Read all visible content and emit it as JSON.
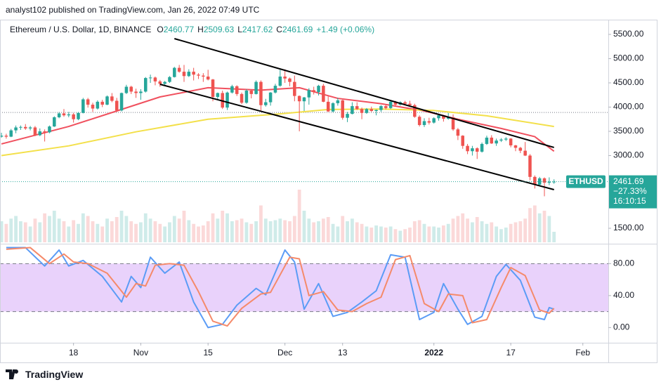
{
  "header": {
    "text": "analyst102 published on TradingView.com, Jan 26, 2022 07:49 UTC"
  },
  "footer": {
    "brand": "TradingView"
  },
  "chart_data": {
    "type": "candlestick",
    "title": "Ethereum / U.S. Dollar, 1D, BINANCE",
    "ohlc": [
      {
        "key": "O",
        "value": "2460.77"
      },
      {
        "key": "H",
        "value": "2509.63"
      },
      {
        "key": "L",
        "value": "2417.62"
      },
      {
        "key": "C",
        "value": "2461.69"
      }
    ],
    "change": "+1.49 (+0.06%)",
    "symbol": "ETHUSD",
    "last_price": {
      "value": 2461.69,
      "label": "2461.69"
    },
    "change_pct": "−27.33%",
    "countdown": "16:10:15",
    "ref_line": 3890,
    "up_color": "#26a69a",
    "down_color": "#ef5350",
    "grid": false,
    "ylim": [
      1210,
      5804
    ],
    "yticks": [
      {
        "value": 5500,
        "label": "5500.00"
      },
      {
        "value": 5000,
        "label": "5000.00"
      },
      {
        "value": 4500,
        "label": "4500.00"
      },
      {
        "value": 4000,
        "label": "4000.00"
      },
      {
        "value": 3500,
        "label": "3500.00"
      },
      {
        "value": 3000,
        "label": "3000.00"
      },
      {
        "value": 1500,
        "label": "1500.00"
      }
    ],
    "xlim": [
      -0.3,
      126.3
    ],
    "xticks": [
      {
        "value": 15,
        "label": "18"
      },
      {
        "value": 29,
        "label": "Nov"
      },
      {
        "value": 43,
        "label": "15"
      },
      {
        "value": 59,
        "label": "Dec"
      },
      {
        "value": 71,
        "label": "13"
      },
      {
        "value": 90,
        "label": "2022"
      },
      {
        "value": 106,
        "label": "17"
      },
      {
        "value": 121,
        "label": "Feb"
      }
    ],
    "candles": [
      [
        3390,
        3470,
        3370,
        3410
      ],
      [
        3410,
        3450,
        3350,
        3390
      ],
      [
        3390,
        3550,
        3380,
        3520
      ],
      [
        3520,
        3620,
        3460,
        3580
      ],
      [
        3580,
        3620,
        3530,
        3590
      ],
      [
        3590,
        3650,
        3530,
        3560
      ],
      [
        3560,
        3610,
        3520,
        3580
      ],
      [
        3580,
        3610,
        3400,
        3420
      ],
      [
        3420,
        3560,
        3400,
        3500
      ],
      [
        3500,
        3540,
        3290,
        3480
      ],
      [
        3480,
        3620,
        3460,
        3600
      ],
      [
        3600,
        3810,
        3590,
        3790
      ],
      [
        3790,
        3900,
        3770,
        3870
      ],
      [
        3870,
        3960,
        3800,
        3830
      ],
      [
        3830,
        3900,
        3790,
        3850
      ],
      [
        3850,
        3880,
        3680,
        3750
      ],
      [
        3750,
        3900,
        3730,
        3880
      ],
      [
        3880,
        4190,
        3870,
        4160
      ],
      [
        4160,
        4190,
        3990,
        4050
      ],
      [
        4050,
        4090,
        3900,
        3970
      ],
      [
        3970,
        4140,
        3950,
        4110
      ],
      [
        4110,
        4150,
        4000,
        4050
      ],
      [
        4050,
        4240,
        4040,
        4220
      ],
      [
        4220,
        4290,
        4100,
        4130
      ],
      [
        4130,
        4190,
        3900,
        3930
      ],
      [
        3930,
        4300,
        3910,
        4290
      ],
      [
        4290,
        4460,
        4270,
        4420
      ],
      [
        4420,
        4440,
        4270,
        4320
      ],
      [
        4320,
        4380,
        4190,
        4290
      ],
      [
        4290,
        4370,
        4150,
        4320
      ],
      [
        4320,
        4620,
        4300,
        4600
      ],
      [
        4600,
        4670,
        4500,
        4610
      ],
      [
        4610,
        4630,
        4450,
        4530
      ],
      [
        4530,
        4560,
        4420,
        4480
      ],
      [
        4480,
        4540,
        4440,
        4520
      ],
      [
        4520,
        4640,
        4500,
        4620
      ],
      [
        4620,
        4830,
        4610,
        4810
      ],
      [
        4810,
        4870,
        4710,
        4730
      ],
      [
        4730,
        4870,
        4520,
        4640
      ],
      [
        4640,
        4780,
        4620,
        4730
      ],
      [
        4730,
        4810,
        4550,
        4670
      ],
      [
        4670,
        4700,
        4580,
        4650
      ],
      [
        4650,
        4700,
        4520,
        4630
      ],
      [
        4630,
        4770,
        4550,
        4570
      ],
      [
        4570,
        4580,
        4120,
        4210
      ],
      [
        4210,
        4300,
        4140,
        4290
      ],
      [
        4290,
        4340,
        3960,
        3990
      ],
      [
        3990,
        4320,
        3940,
        4300
      ],
      [
        4300,
        4460,
        4280,
        4430
      ],
      [
        4430,
        4450,
        4230,
        4270
      ],
      [
        4270,
        4300,
        4060,
        4090
      ],
      [
        4090,
        4370,
        4070,
        4340
      ],
      [
        4340,
        4360,
        4180,
        4270
      ],
      [
        4270,
        4550,
        4260,
        4520
      ],
      [
        4520,
        4550,
        3930,
        4040
      ],
      [
        4040,
        4170,
        4010,
        4100
      ],
      [
        4100,
        4310,
        4030,
        4300
      ],
      [
        4300,
        4480,
        4280,
        4440
      ],
      [
        4440,
        4770,
        4420,
        4630
      ],
      [
        4630,
        4780,
        4500,
        4590
      ],
      [
        4590,
        4610,
        4430,
        4520
      ],
      [
        4520,
        4650,
        4120,
        4230
      ],
      [
        4230,
        4240,
        3500,
        4120
      ],
      [
        4120,
        4210,
        3920,
        4200
      ],
      [
        4200,
        4390,
        4050,
        4350
      ],
      [
        4350,
        4420,
        4260,
        4310
      ],
      [
        4310,
        4460,
        4240,
        4440
      ],
      [
        4440,
        4480,
        4100,
        4110
      ],
      [
        4110,
        4220,
        3900,
        3910
      ],
      [
        3910,
        4100,
        3890,
        4080
      ],
      [
        4080,
        4190,
        4030,
        4140
      ],
      [
        4140,
        4150,
        3740,
        3780
      ],
      [
        3780,
        3900,
        3690,
        3860
      ],
      [
        3860,
        4100,
        3850,
        4020
      ],
      [
        4020,
        4100,
        3940,
        3960
      ],
      [
        3960,
        3990,
        3750,
        3880
      ],
      [
        3880,
        3980,
        3860,
        3960
      ],
      [
        3960,
        4010,
        3900,
        3920
      ],
      [
        3920,
        3950,
        3830,
        3940
      ],
      [
        3940,
        4040,
        3900,
        4020
      ],
      [
        4020,
        4060,
        3950,
        3980
      ],
      [
        3980,
        4130,
        3960,
        4110
      ],
      [
        4110,
        4130,
        4020,
        4050
      ],
      [
        4050,
        4120,
        4030,
        4100
      ],
      [
        4100,
        4130,
        4040,
        4070
      ],
      [
        4070,
        4130,
        4010,
        4040
      ],
      [
        4040,
        4070,
        3780,
        3800
      ],
      [
        3800,
        3830,
        3600,
        3630
      ],
      [
        3630,
        3770,
        3590,
        3710
      ],
      [
        3710,
        3780,
        3640,
        3680
      ],
      [
        3680,
        3790,
        3660,
        3770
      ],
      [
        3770,
        3850,
        3720,
        3830
      ],
      [
        3830,
        3840,
        3700,
        3760
      ],
      [
        3760,
        3880,
        3740,
        3790
      ],
      [
        3790,
        3850,
        3510,
        3540
      ],
      [
        3540,
        3570,
        3320,
        3410
      ],
      [
        3410,
        3420,
        3140,
        3200
      ],
      [
        3200,
        3240,
        3030,
        3090
      ],
      [
        3090,
        3200,
        3000,
        3150
      ],
      [
        3150,
        3170,
        2930,
        3080
      ],
      [
        3080,
        3270,
        3060,
        3240
      ],
      [
        3240,
        3410,
        3220,
        3370
      ],
      [
        3370,
        3420,
        3240,
        3250
      ],
      [
        3250,
        3350,
        3200,
        3310
      ],
      [
        3310,
        3360,
        3280,
        3330
      ],
      [
        3330,
        3380,
        3300,
        3350
      ],
      [
        3350,
        3360,
        3170,
        3210
      ],
      [
        3210,
        3220,
        3090,
        3160
      ],
      [
        3160,
        3180,
        3050,
        3100
      ],
      [
        3100,
        3280,
        2990,
        3000
      ],
      [
        3000,
        3030,
        2490,
        2560
      ],
      [
        2560,
        2590,
        2320,
        2400
      ],
      [
        2400,
        2560,
        2380,
        2530
      ],
      [
        2530,
        2550,
        2160,
        2440
      ],
      [
        2440,
        2550,
        2390,
        2460
      ],
      [
        2460.77,
        2509.63,
        2417.62,
        2461.69
      ]
    ],
    "volume_lim": [
      0,
      100
    ],
    "volume": [
      40,
      35,
      45,
      50,
      40,
      38,
      30,
      45,
      38,
      55,
      50,
      60,
      45,
      40,
      30,
      42,
      35,
      55,
      50,
      40,
      35,
      30,
      45,
      40,
      48,
      60,
      50,
      40,
      35,
      38,
      55,
      45,
      40,
      35,
      30,
      38,
      50,
      45,
      60,
      42,
      35,
      30,
      32,
      40,
      55,
      45,
      60,
      55,
      40,
      42,
      45,
      38,
      35,
      40,
      70,
      45,
      40,
      42,
      45,
      42,
      40,
      50,
      100,
      60,
      45,
      38,
      40,
      45,
      48,
      35,
      30,
      50,
      40,
      45,
      38,
      35,
      30,
      28,
      32,
      30,
      28,
      30,
      25,
      22,
      25,
      28,
      40,
      42,
      35,
      30,
      30,
      28,
      32,
      35,
      45,
      50,
      55,
      45,
      38,
      48,
      40,
      35,
      38,
      30,
      25,
      28,
      35,
      38,
      40,
      45,
      65,
      70,
      55,
      60,
      50,
      20
    ],
    "ma_lines": [
      {
        "color": "#f0505e",
        "x": [
          0,
          14,
          24,
          33,
          43,
          54,
          62,
          70,
          79,
          88,
          95,
          104,
          111,
          115
        ],
        "values": [
          3240,
          3600,
          3920,
          4210,
          4400,
          4350,
          4400,
          4180,
          4070,
          3920,
          3750,
          3560,
          3390,
          3090
        ]
      },
      {
        "color": "#f3e04a",
        "x": [
          0,
          14,
          28,
          43,
          58,
          68,
          79,
          90,
          101,
          115
        ],
        "values": [
          3000,
          3200,
          3490,
          3750,
          3860,
          3950,
          3960,
          3930,
          3820,
          3600
        ]
      }
    ],
    "trendlines": [
      {
        "color": "#000000",
        "x": [
          36,
          115
        ],
        "values": [
          5413,
          3167
        ]
      },
      {
        "color": "#000000",
        "x": [
          33,
          115
        ],
        "values": [
          4471,
          2297
        ]
      }
    ],
    "stoch": {
      "ylim": [
        -19,
        104
      ],
      "yticks": [
        {
          "value": 80,
          "label": "80.00"
        },
        {
          "value": 40,
          "label": "40.00"
        },
        {
          "value": 0,
          "label": "0.00"
        }
      ],
      "band": [
        20,
        80
      ],
      "band_color": "#e9d2fb",
      "lines": [
        {
          "color": "#5b9cf6",
          "x": [
            1,
            5,
            9,
            12,
            14,
            17,
            21,
            25,
            27,
            29,
            31,
            34,
            37,
            40,
            43,
            46,
            49,
            53,
            55,
            59,
            61,
            63,
            66,
            69,
            72,
            75,
            78,
            81,
            84,
            87,
            90,
            92,
            95,
            97,
            100,
            103,
            105,
            108,
            111,
            113,
            114,
            115
          ],
          "values": [
            100,
            100,
            77,
            97,
            77,
            84,
            64,
            32,
            64,
            50,
            88,
            68,
            82,
            32,
            0,
            4,
            28,
            49,
            41,
            97,
            82,
            23,
            55,
            14,
            19,
            32,
            46,
            91,
            88,
            10,
            19,
            55,
            23,
            4,
            14,
            64,
            79,
            59,
            13,
            10,
            25,
            23
          ]
        },
        {
          "color": "#f58a6a",
          "x": [
            1,
            6,
            10,
            13,
            15,
            18,
            22,
            26,
            28,
            30,
            32,
            35,
            38,
            41,
            44,
            47,
            50,
            54,
            56,
            60,
            62,
            64,
            67,
            70,
            73,
            76,
            79,
            82,
            85,
            88,
            91,
            93,
            96,
            98,
            101,
            104,
            106,
            109,
            112,
            114,
            115
          ],
          "values": [
            98,
            100,
            80,
            92,
            82,
            80,
            68,
            38,
            55,
            52,
            78,
            80,
            78,
            45,
            8,
            2,
            24,
            42,
            44,
            88,
            86,
            40,
            45,
            22,
            20,
            30,
            38,
            85,
            90,
            30,
            20,
            42,
            40,
            6,
            10,
            50,
            75,
            65,
            22,
            18,
            24
          ]
        }
      ]
    }
  }
}
